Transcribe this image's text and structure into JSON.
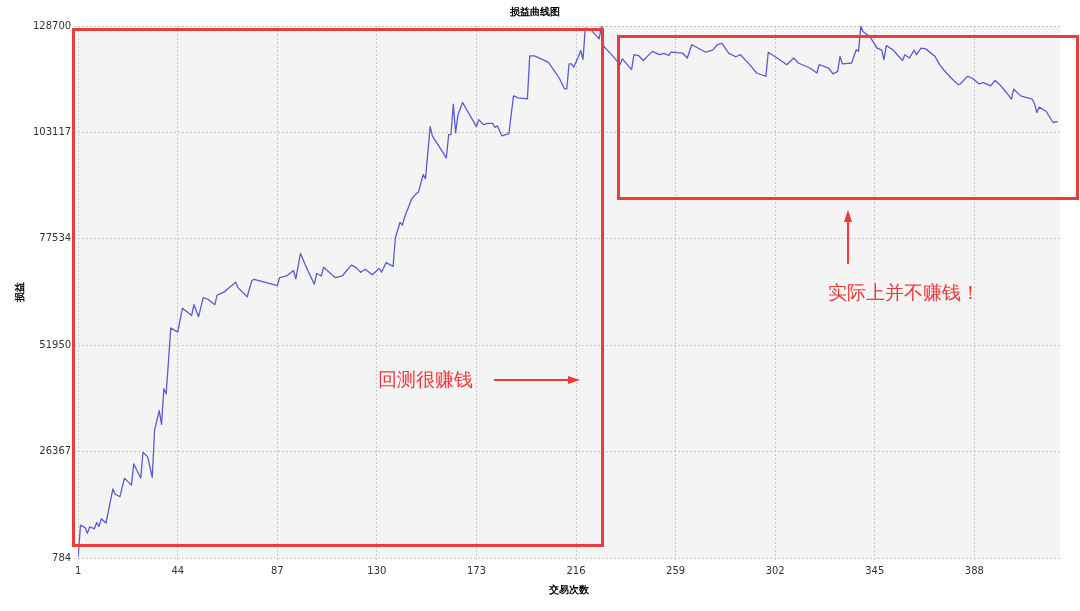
{
  "chart_data": {
    "type": "line",
    "title": "损益曲线图",
    "xlabel": "交易次数",
    "ylabel": "损益",
    "annotations": [
      "回测很赚钱",
      "实际上并不赚钱！"
    ],
    "xlim": [
      1,
      425
    ],
    "xticks": [
      1,
      44,
      87,
      130,
      173,
      216,
      259,
      302,
      345,
      388
    ],
    "ylim": [
      784,
      128700
    ],
    "yticks": [
      784,
      26367,
      51950,
      77534,
      103117,
      128700
    ],
    "grid": true,
    "legend": false,
    "marker": "none",
    "line_style": "solid",
    "series": [
      {
        "color": "#5b5bd0",
        "x": [
          1,
          2,
          4,
          5,
          6,
          8,
          9,
          10,
          11,
          13,
          16,
          17,
          19,
          21,
          24,
          25,
          28,
          29,
          31,
          33,
          34,
          36,
          37,
          38,
          39,
          41,
          44,
          46,
          48,
          50,
          51,
          53,
          55,
          57,
          60,
          61,
          64,
          65,
          69,
          70,
          74,
          76,
          77,
          83,
          87,
          88,
          91,
          94,
          95,
          97,
          100,
          103,
          104,
          106,
          107,
          112,
          115,
          119,
          121,
          123,
          125,
          128,
          131,
          132,
          134,
          137,
          138,
          140,
          141,
          142,
          145,
          147,
          148,
          150,
          151,
          153,
          154,
          160,
          161,
          162,
          163,
          164,
          165,
          167,
          173,
          174,
          176,
          178,
          180,
          181,
          182,
          184,
          187,
          189,
          191,
          195,
          196,
          198,
          204,
          208,
          209,
          211,
          212,
          213,
          214,
          215,
          217,
          218,
          219,
          220,
          222,
          226,
          227,
          228,
          232,
          235,
          236,
          240,
          241,
          243,
          245,
          249,
          252,
          254,
          256,
          257,
          262,
          264,
          266,
          272,
          275,
          277,
          279,
          282,
          285,
          287,
          291,
          294,
          298,
          299,
          304,
          307,
          310,
          312,
          317,
          320,
          321,
          325,
          327,
          329,
          330,
          331,
          335,
          337,
          338,
          339,
          340,
          343,
          346,
          348,
          349,
          350,
          353,
          355,
          357,
          358,
          360,
          362,
          363,
          365,
          367,
          371,
          373,
          375,
          378,
          381,
          382,
          385,
          387,
          390,
          392,
          395,
          397,
          399,
          402,
          404,
          405,
          408,
          413,
          414,
          415,
          416,
          419,
          422,
          424
        ],
        "values": [
          1000,
          8700,
          8100,
          6700,
          8300,
          7800,
          9300,
          8400,
          10200,
          9200,
          17400,
          16100,
          15500,
          20000,
          18300,
          23400,
          20000,
          26200,
          25100,
          20200,
          31600,
          36200,
          32900,
          41500,
          40200,
          56100,
          55100,
          60800,
          60000,
          59100,
          61700,
          58800,
          63400,
          63000,
          61700,
          64000,
          64700,
          65200,
          67100,
          65800,
          63600,
          67500,
          67800,
          66900,
          66300,
          68200,
          68600,
          69900,
          67900,
          74000,
          70100,
          66600,
          69200,
          68600,
          70700,
          68200,
          68600,
          71200,
          70600,
          69500,
          70200,
          68900,
          70400,
          69500,
          71800,
          70900,
          77800,
          81500,
          80800,
          82800,
          87100,
          88400,
          88800,
          93000,
          92000,
          104500,
          102200,
          97000,
          102600,
          102600,
          109900,
          103000,
          107300,
          110300,
          104500,
          106200,
          105000,
          105300,
          105300,
          104300,
          104700,
          102300,
          102800,
          111900,
          111400,
          111200,
          121500,
          121500,
          120000,
          116800,
          115900,
          113600,
          113600,
          119600,
          119600,
          118800,
          121300,
          122800,
          120700,
          128200,
          128000,
          125600,
          128700,
          123800,
          121400,
          119400,
          120800,
          118200,
          121800,
          121600,
          120400,
          122600,
          121800,
          122100,
          121600,
          122400,
          122200,
          121000,
          124200,
          122400,
          122900,
          124200,
          124500,
          122100,
          121300,
          121800,
          119400,
          117400,
          116600,
          122400,
          120600,
          119400,
          121000,
          119800,
          118600,
          117400,
          119400,
          118600,
          117200,
          117800,
          121400,
          119600,
          119800,
          123000,
          122600,
          128600,
          127300,
          126100,
          123400,
          122900,
          120600,
          124000,
          122900,
          121600,
          120400,
          121800,
          121000,
          122900,
          121800,
          123400,
          123200,
          121400,
          119400,
          118000,
          116200,
          114600,
          114800,
          116600,
          116200,
          114800,
          115100,
          114300,
          115600,
          114600,
          112600,
          111100,
          113500,
          111900,
          111100,
          110000,
          107900,
          109200,
          108200,
          105500,
          105700
        ]
      }
    ]
  }
}
